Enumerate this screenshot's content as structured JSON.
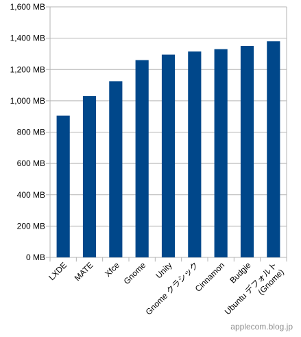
{
  "chart_data": {
    "type": "bar",
    "title": "",
    "xlabel": "",
    "ylabel": "",
    "categories": [
      "LXDE",
      "MATE",
      "Xfce",
      "Gnome",
      "Unity",
      "Gnome クラシック",
      "Cinnamon",
      "Budgie",
      "Ubuntu デフォルト\n(Gnome)"
    ],
    "values": [
      905,
      1030,
      1125,
      1260,
      1295,
      1315,
      1330,
      1350,
      1380
    ],
    "unit": "MB",
    "ylim": [
      0,
      1600
    ],
    "yticks": [
      "0 MB",
      "200 MB",
      "400 MB",
      "600 MB",
      "800 MB",
      "1,000 MB",
      "1,200 MB",
      "1,400 MB",
      "1,600 MB"
    ],
    "grid": true,
    "legend": "none",
    "bar_color": "#00478a"
  },
  "watermark": "applecom.blog.jp"
}
